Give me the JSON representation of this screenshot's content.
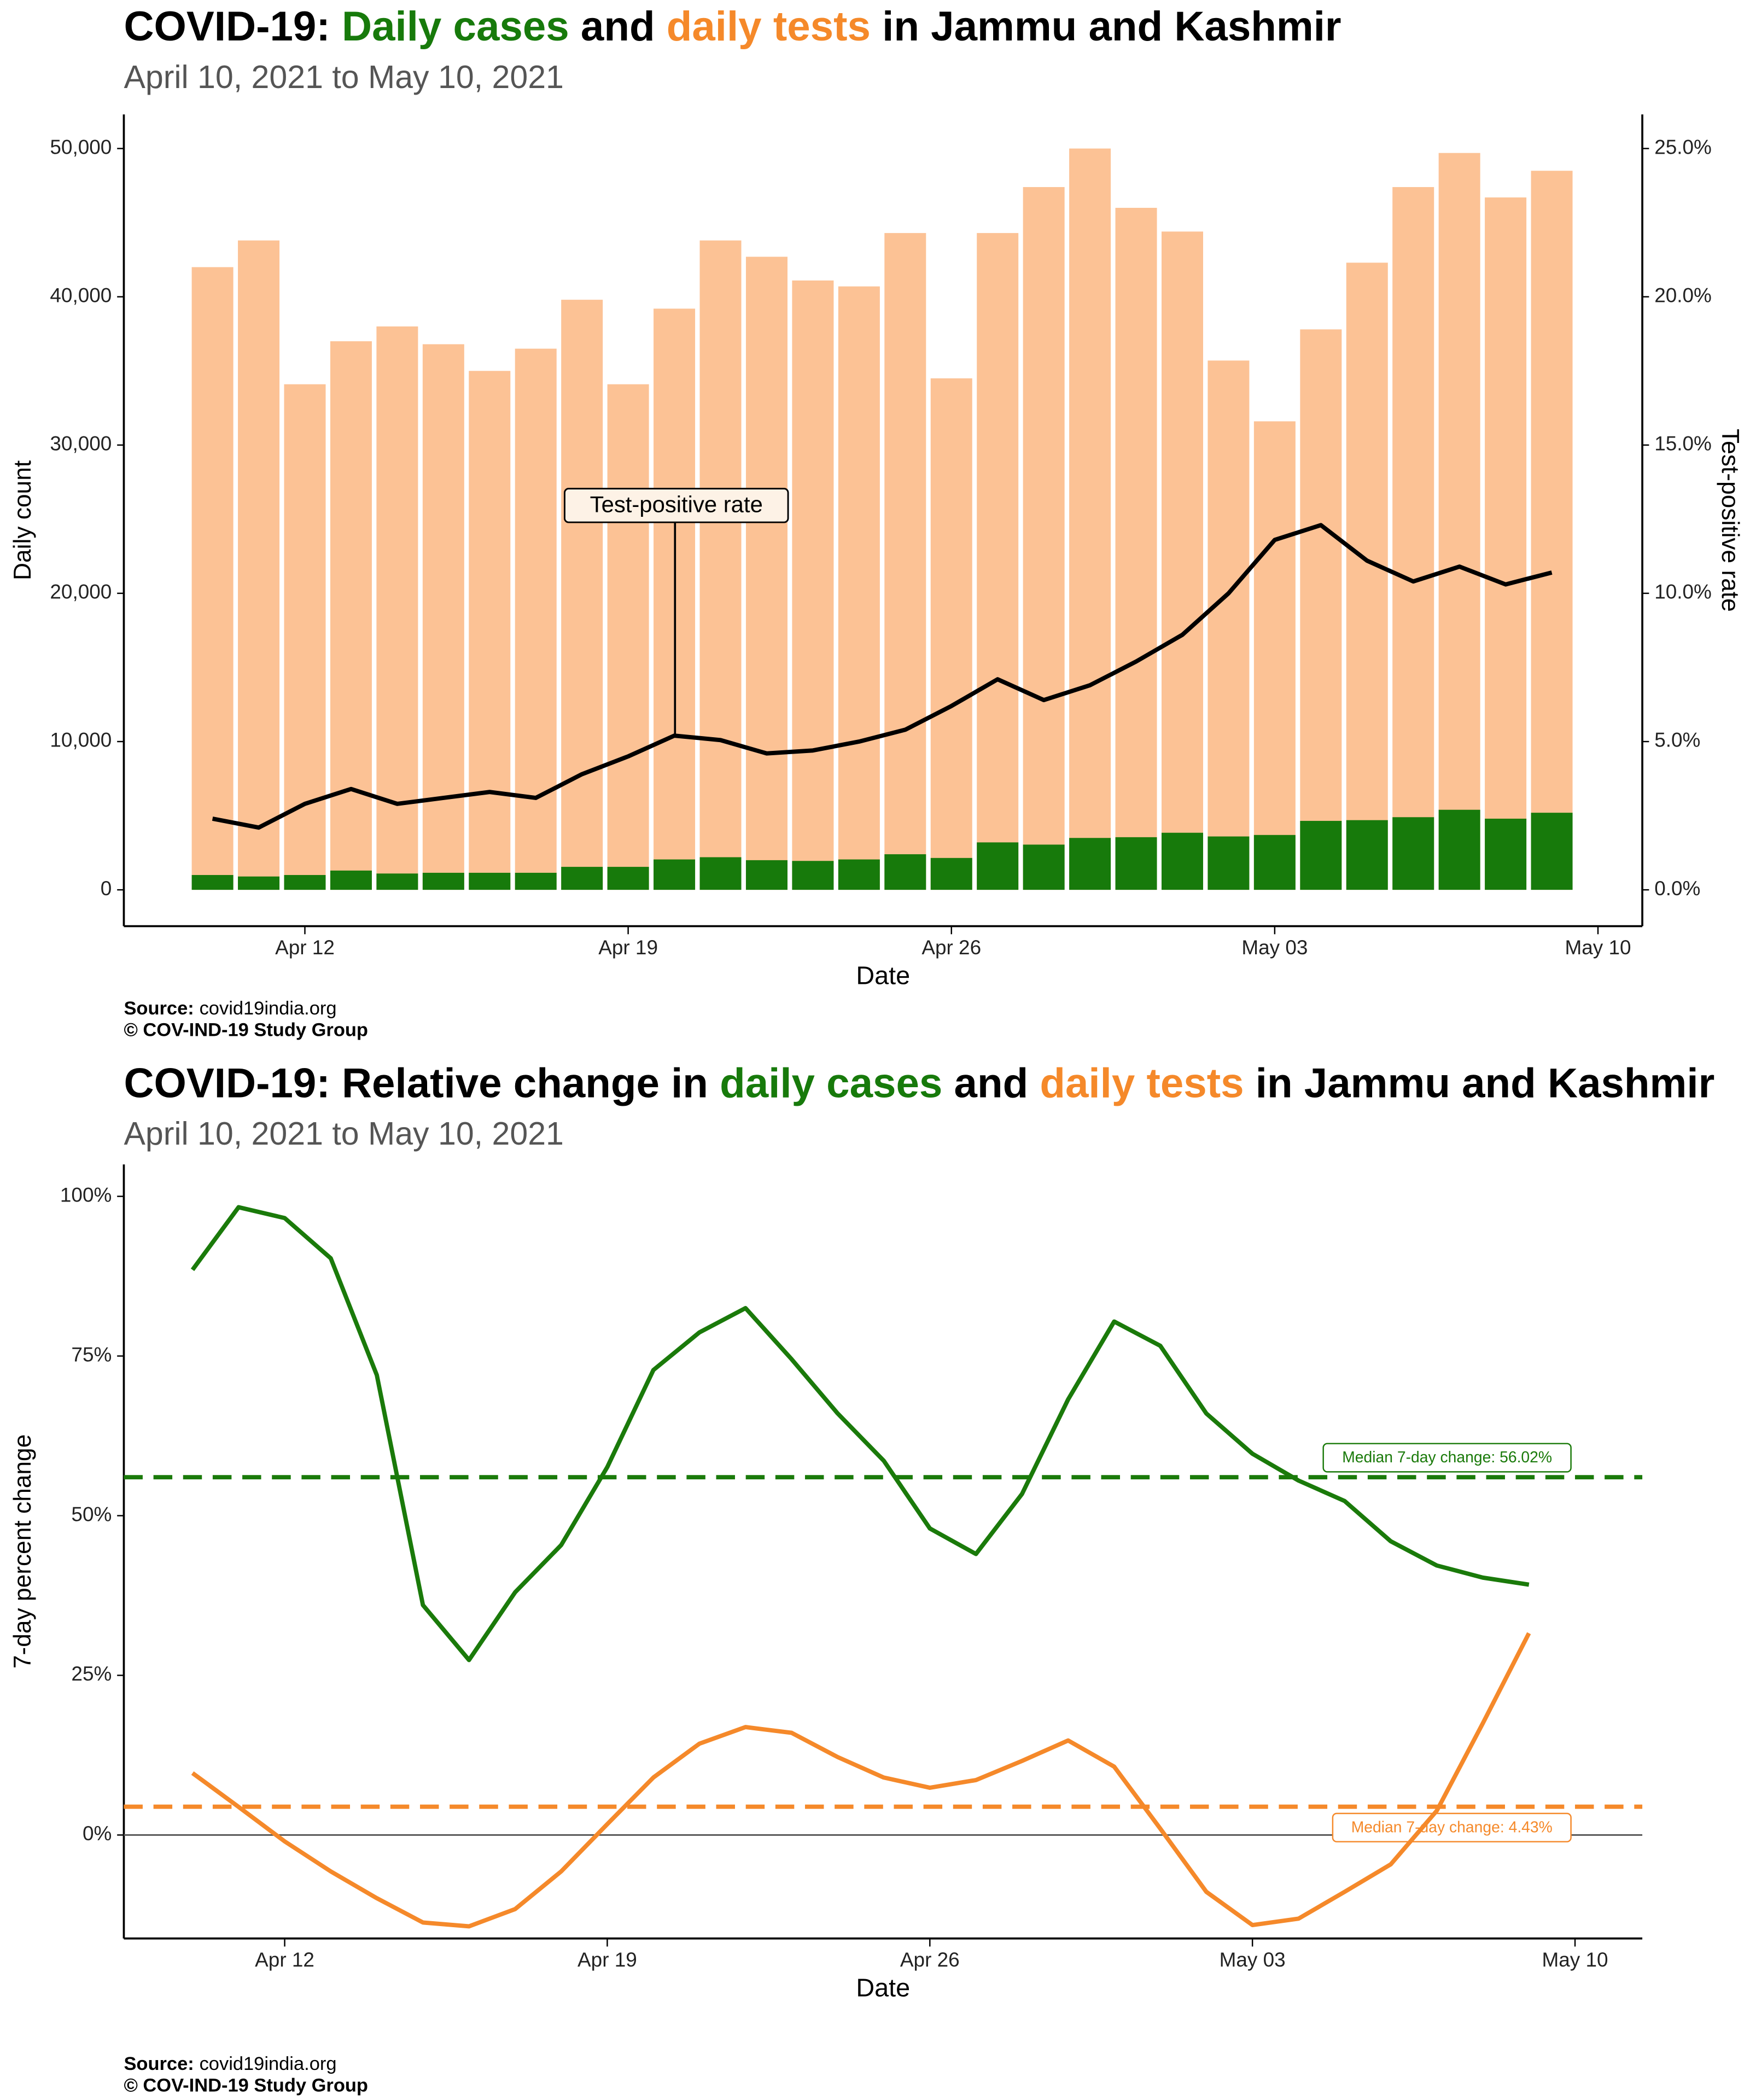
{
  "chart_data": [
    {
      "type": "bar",
      "title": [
        "COVID-19: ",
        "Daily cases",
        " and ",
        "daily tests",
        " in Jammu and Kashmir"
      ],
      "title_colors": [
        "#000000",
        "#177a0b",
        "#000000",
        "#f5892a",
        "#000000"
      ],
      "subtitle": "April 10, 2021 to May 10, 2021",
      "x_label": "Date",
      "y_label": "Daily count",
      "y2_label": "Test-positive rate",
      "x": [
        "Apr 10",
        "Apr 11",
        "Apr 12",
        "Apr 13",
        "Apr 14",
        "Apr 15",
        "Apr 16",
        "Apr 17",
        "Apr 18",
        "Apr 19",
        "Apr 20",
        "Apr 21",
        "Apr 22",
        "Apr 23",
        "Apr 24",
        "Apr 25",
        "Apr 26",
        "Apr 27",
        "Apr 28",
        "Apr 29",
        "Apr 30",
        "May 01",
        "May 02",
        "May 03",
        "May 04",
        "May 05",
        "May 06",
        "May 07",
        "May 08",
        "May 09"
      ],
      "xticks": [
        "Apr 12",
        "Apr 19",
        "Apr 26",
        "May 03",
        "May 10"
      ],
      "series": [
        {
          "color": "#fcc295",
          "values": [
            42000,
            43800,
            34100,
            37000,
            38000,
            36800,
            35000,
            36500,
            39800,
            34100,
            39200,
            43800,
            42700,
            41100,
            40700,
            44300,
            34500,
            44300,
            47400,
            50000,
            46000,
            44400,
            35700,
            31600,
            37800,
            42300,
            47400,
            49700,
            46700,
            48500
          ]
        },
        {
          "color": "#177a0b",
          "values": [
            1000,
            900,
            1000,
            1300,
            1100,
            1150,
            1150,
            1150,
            1550,
            1550,
            2050,
            2200,
            2000,
            1950,
            2050,
            2400,
            2150,
            3200,
            3050,
            3500,
            3550,
            3850,
            3600,
            3700,
            4650,
            4700,
            4900,
            5400,
            4800,
            5200
          ]
        },
        {
          "name": "Test-positive rate",
          "type": "line",
          "axis": "y2",
          "color": "#000000",
          "values": [
            2.4,
            2.1,
            2.9,
            3.4,
            2.9,
            3.1,
            3.3,
            3.1,
            3.9,
            4.5,
            5.2,
            5.05,
            4.6,
            4.7,
            5.0,
            5.4,
            6.2,
            7.1,
            6.4,
            6.9,
            7.7,
            8.6,
            10.0,
            11.8,
            12.3,
            11.1,
            10.4,
            10.9,
            10.3,
            10.7
          ]
        }
      ],
      "ylim": [
        -2450,
        52300
      ],
      "yticks": [
        0,
        {
          "value": 10000,
          "label": "10,000"
        },
        {
          "value": 20000,
          "label": "20,000"
        },
        {
          "value": 30000,
          "label": "30,000"
        },
        {
          "value": 40000,
          "label": "40,000"
        },
        {
          "value": 50000,
          "label": "50,000"
        }
      ],
      "y2lim": [
        -1.225,
        26.15
      ],
      "y2ticks": [
        {
          "value": 0,
          "label": "0.0%"
        },
        {
          "value": 5,
          "label": "5.0%"
        },
        {
          "value": 10,
          "label": "10.0%"
        },
        {
          "value": 15,
          "label": "15.0%"
        },
        {
          "value": 20,
          "label": "20.0%"
        },
        {
          "value": 25,
          "label": "25.0%"
        }
      ],
      "source_label": "Source:",
      "source": "covid19india.org",
      "copyright": "© COV-IND-19 Study Group"
    },
    {
      "type": "line",
      "title": [
        "COVID-19: Relative change in ",
        "daily cases",
        " and ",
        "daily tests",
        " in Jammu and Kashmir"
      ],
      "title_colors": [
        "#000000",
        "#177a0b",
        "#000000",
        "#f5892a",
        "#000000"
      ],
      "subtitle": "April 10, 2021 to May 10, 2021",
      "x_label": "Date",
      "y_label": "7-day percent change",
      "x": [
        "Apr 10",
        "Apr 11",
        "Apr 12",
        "Apr 13",
        "Apr 14",
        "Apr 15",
        "Apr 16",
        "Apr 17",
        "Apr 18",
        "Apr 19",
        "Apr 20",
        "Apr 21",
        "Apr 22",
        "Apr 23",
        "Apr 24",
        "Apr 25",
        "Apr 26",
        "Apr 27",
        "Apr 28",
        "Apr 29",
        "Apr 30",
        "May 01",
        "May 02",
        "May 03",
        "May 04",
        "May 05",
        "May 06",
        "May 07",
        "May 08",
        "May 09"
      ],
      "xticks": [
        "Apr 12",
        "Apr 19",
        "Apr 26",
        "May 03",
        "May 10"
      ],
      "series": [
        {
          "color": "#1a7a0a",
          "values": [
            88.5,
            98.3,
            96.6,
            90.3,
            72,
            36,
            27.4,
            38,
            45.4,
            57.6,
            72.8,
            78.7,
            82.5,
            74.5,
            66,
            58.6,
            48,
            44,
            53.4,
            68.2,
            80.4,
            76.6,
            66,
            59.7,
            55.5,
            52.3,
            46,
            42.2,
            40.3,
            39.2
          ]
        },
        {
          "color": "#f5892a",
          "values": [
            9.7,
            4.4,
            -1,
            -5.7,
            -9.9,
            -13.7,
            -14.3,
            -11.6,
            -5.7,
            1.7,
            9,
            14.3,
            16.9,
            16,
            12.2,
            9,
            7.4,
            8.6,
            11.6,
            14.8,
            10.7,
            1,
            -8.9,
            -14.1,
            -13.1,
            -8.9,
            -4.6,
            3.8,
            17.5,
            31.6
          ]
        }
      ],
      "medians": [
        {
          "value": 56.02,
          "label": "Median 7-day change: 56.02%",
          "color": "#1a7a0a"
        },
        {
          "value": 4.43,
          "label": "Median 7-day change: 4.43%",
          "color": "#f5892a"
        }
      ],
      "ylim": [
        -16.2,
        105
      ],
      "yticks": [
        {
          "value": 0,
          "label": "0%"
        },
        {
          "value": 25,
          "label": "25%"
        },
        {
          "value": 50,
          "label": "50%"
        },
        {
          "value": 75,
          "label": "75%"
        },
        {
          "value": 100,
          "label": "100%"
        }
      ],
      "source_label": "Source:",
      "source": "covid19india.org",
      "copyright": "© COV-IND-19 Study Group"
    }
  ]
}
